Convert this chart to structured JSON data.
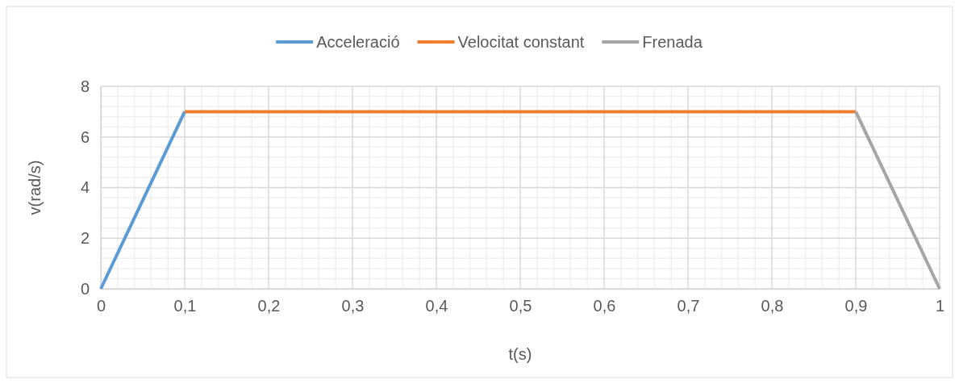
{
  "chart_data": {
    "type": "line",
    "xlabel": "t(s)",
    "ylabel": "v(rad/s)",
    "xlim": [
      0,
      1
    ],
    "ylim": [
      0,
      8
    ],
    "xticks": [
      0,
      {
        "value": 0.1,
        "label": "0,1"
      },
      {
        "value": 0.2,
        "label": "0,2"
      },
      {
        "value": 0.3,
        "label": "0,3"
      },
      {
        "value": 0.4,
        "label": "0,4"
      },
      {
        "value": 0.5,
        "label": "0,5"
      },
      {
        "value": 0.6,
        "label": "0,6"
      },
      {
        "value": 0.7,
        "label": "0,7"
      },
      {
        "value": 0.8,
        "label": "0,8"
      },
      {
        "value": 0.9,
        "label": "0,9"
      },
      1
    ],
    "yticks": [
      0,
      2,
      4,
      6,
      8
    ],
    "grid": true,
    "legend": "top",
    "marker": "none",
    "line_style": "solid",
    "series": [
      {
        "name": "Acceleració",
        "color": "#5b9bd5",
        "x": [
          0,
          0.1
        ],
        "values": [
          0,
          7
        ]
      },
      {
        "name": "Velocitat constant",
        "color": "#ed7d31",
        "x": [
          0.1,
          0.9
        ],
        "values": [
          7,
          7
        ]
      },
      {
        "name": "Frenada",
        "color": "#a5a5a5",
        "x": [
          0.9,
          1
        ],
        "values": [
          7,
          0
        ]
      }
    ]
  }
}
